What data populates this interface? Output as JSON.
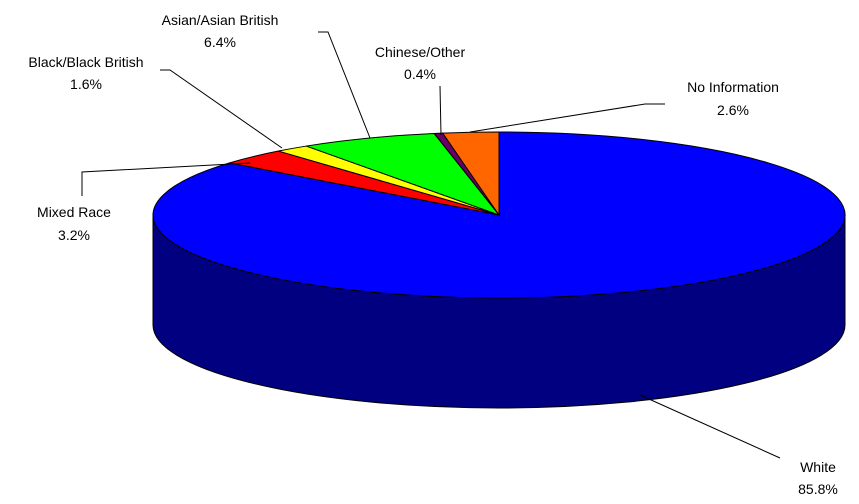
{
  "chart_data": {
    "type": "pie",
    "style": "3d",
    "title": "",
    "slices": [
      {
        "label": "White",
        "value": 85.8,
        "value_label": "85.8%",
        "color": "#0000ff",
        "side_color": "#000080"
      },
      {
        "label": "Mixed Race",
        "value": 3.2,
        "value_label": "3.2%",
        "color": "#ff0000",
        "side_color": "#800000"
      },
      {
        "label": "Black/Black British",
        "value": 1.6,
        "value_label": "1.6%",
        "color": "#ffff00",
        "side_color": "#808000"
      },
      {
        "label": "Asian/Asian British",
        "value": 6.4,
        "value_label": "6.4%",
        "color": "#00ff00",
        "side_color": "#008000"
      },
      {
        "label": "Chinese/Other",
        "value": 0.4,
        "value_label": "0.4%",
        "color": "#660066",
        "side_color": "#330033"
      },
      {
        "label": "No Information",
        "value": 2.6,
        "value_label": "2.6%",
        "color": "#ff6600",
        "side_color": "#803300"
      }
    ]
  }
}
